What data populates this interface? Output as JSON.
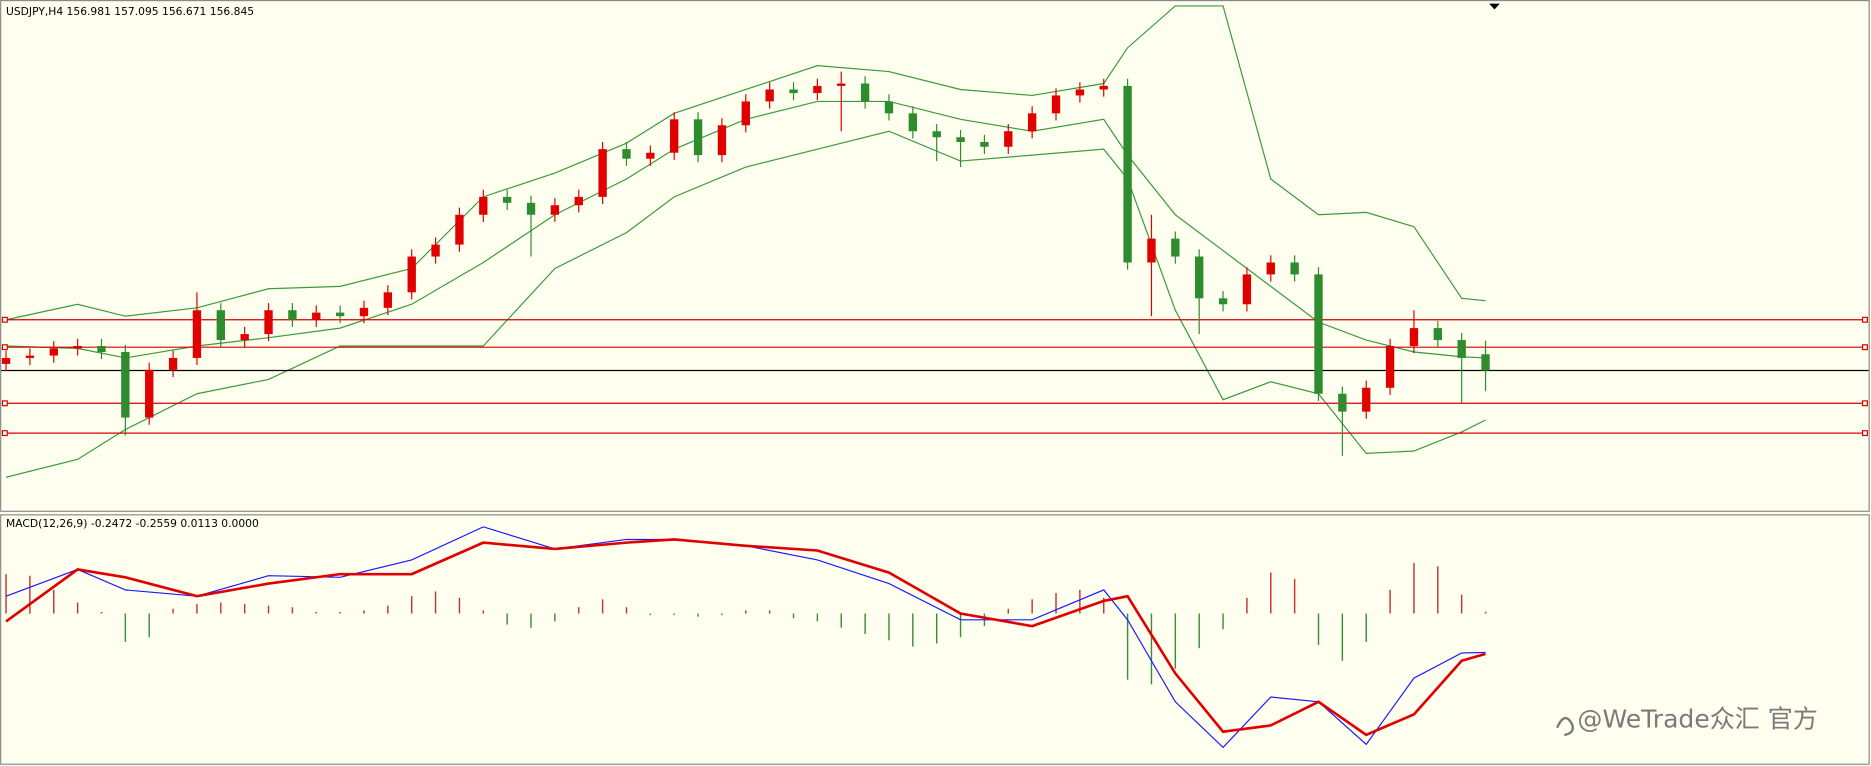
{
  "chart_data": [
    {
      "type": "candlestick",
      "title": "USDJPY,H4  156.981 157.095 156.671 156.845",
      "ylim": [
        155.67,
        159.95
      ],
      "up_color": "#e00000",
      "down_color": "#2e8b2e",
      "open": [
        156.9,
        156.95,
        156.97,
        157.03,
        157.05,
        157.0,
        156.45,
        156.85,
        156.95,
        157.35,
        157.1,
        157.15,
        157.35,
        157.27,
        157.33,
        157.3,
        157.37,
        157.5,
        157.8,
        157.9,
        158.15,
        158.3,
        158.25,
        158.15,
        158.23,
        158.3,
        158.7,
        158.62,
        158.67,
        158.95,
        158.65,
        158.9,
        159.1,
        159.2,
        159.17,
        159.23,
        159.25,
        159.1,
        159.0,
        158.85,
        158.8,
        158.76,
        158.72,
        158.85,
        159.0,
        159.15,
        159.2,
        159.23,
        157.75,
        157.95,
        157.8,
        157.45,
        157.4,
        157.65,
        157.75,
        157.65,
        156.65,
        156.5,
        156.7,
        157.05,
        157.2,
        157.1,
        156.981
      ],
      "high": [
        157.01,
        157.03,
        157.09,
        157.11,
        157.11,
        157.06,
        156.91,
        157.01,
        157.5,
        157.41,
        157.21,
        157.41,
        157.41,
        157.39,
        157.39,
        157.43,
        157.56,
        157.86,
        157.96,
        158.21,
        158.36,
        158.36,
        158.31,
        158.29,
        158.36,
        158.76,
        158.76,
        158.73,
        159.01,
        159.01,
        158.96,
        159.16,
        159.26,
        159.26,
        159.29,
        159.35,
        159.31,
        159.16,
        159.06,
        158.91,
        158.86,
        158.82,
        158.91,
        159.06,
        159.21,
        159.26,
        159.29,
        159.29,
        158.15,
        158.01,
        157.86,
        157.51,
        157.71,
        157.81,
        157.81,
        157.71,
        156.71,
        156.76,
        157.11,
        157.35,
        157.26,
        157.16,
        157.095
      ],
      "low": [
        156.84,
        156.89,
        156.91,
        156.97,
        156.94,
        156.3,
        156.39,
        156.79,
        156.89,
        157.04,
        157.04,
        157.09,
        157.21,
        157.21,
        157.24,
        157.24,
        157.31,
        157.44,
        157.74,
        157.84,
        158.09,
        158.19,
        157.8,
        158.09,
        158.17,
        158.24,
        158.56,
        158.56,
        158.61,
        158.59,
        158.59,
        158.84,
        159.04,
        159.11,
        159.11,
        158.85,
        159.04,
        158.94,
        158.79,
        158.6,
        158.55,
        158.66,
        158.66,
        158.79,
        158.94,
        159.09,
        159.14,
        157.69,
        157.3,
        157.74,
        157.15,
        157.34,
        157.34,
        157.59,
        157.59,
        156.59,
        156.13,
        156.44,
        156.64,
        156.99,
        157.04,
        156.57,
        156.671
      ],
      "close": [
        156.95,
        156.97,
        157.03,
        157.05,
        157.0,
        156.45,
        156.85,
        156.95,
        157.35,
        157.1,
        157.15,
        157.35,
        157.27,
        157.33,
        157.3,
        157.37,
        157.5,
        157.8,
        157.9,
        158.15,
        158.3,
        158.25,
        158.15,
        158.23,
        158.3,
        158.7,
        158.62,
        158.67,
        158.95,
        158.65,
        158.9,
        159.1,
        159.2,
        159.17,
        159.23,
        159.25,
        159.1,
        159.0,
        158.85,
        158.8,
        158.76,
        158.72,
        158.85,
        159.0,
        159.15,
        159.2,
        159.23,
        157.75,
        157.95,
        157.8,
        157.45,
        157.4,
        157.65,
        157.75,
        157.65,
        156.65,
        156.5,
        156.7,
        157.05,
        157.2,
        157.1,
        156.95,
        156.845
      ],
      "bands": {
        "color": "#3c9a3c",
        "x": [
          0,
          3,
          5,
          8,
          11,
          14,
          17,
          20,
          23,
          26,
          28,
          31,
          34,
          37,
          40,
          43,
          46,
          47,
          49,
          51,
          53,
          55,
          57,
          59,
          61,
          62
        ],
        "upper": [
          157.27,
          157.4,
          157.3,
          157.37,
          157.53,
          157.55,
          157.7,
          158.3,
          158.5,
          158.75,
          159.0,
          159.2,
          159.4,
          159.35,
          159.2,
          159.15,
          159.25,
          159.55,
          159.9,
          159.9,
          158.45,
          158.15,
          158.17,
          158.05,
          157.45,
          157.43
        ],
        "middle": [
          157.05,
          157.03,
          156.95,
          157.05,
          157.12,
          157.2,
          157.4,
          157.75,
          158.15,
          158.45,
          158.7,
          158.95,
          159.1,
          159.1,
          158.95,
          158.85,
          158.95,
          158.65,
          158.15,
          157.85,
          157.55,
          157.25,
          157.1,
          157.0,
          156.96,
          156.95
        ],
        "lower": [
          155.95,
          156.1,
          156.35,
          156.65,
          156.77,
          157.05,
          157.05,
          157.05,
          157.7,
          158.0,
          158.3,
          158.55,
          158.7,
          158.85,
          158.6,
          158.65,
          158.7,
          158.45,
          157.35,
          156.6,
          156.75,
          156.65,
          156.15,
          156.17,
          156.33,
          156.43
        ]
      },
      "levels": [
        157.27,
        157.04,
        156.57,
        156.32
      ],
      "level_color": "#d40000",
      "price_line_color": "#000000"
    },
    {
      "type": "line",
      "title": "MACD(12,26,9) -0.2472 -0.2559 0.0113 0.0000",
      "ylim": [
        -0.9525,
        0.6225
      ],
      "x": [
        0,
        3,
        5,
        8,
        11,
        14,
        17,
        20,
        23,
        26,
        28,
        31,
        34,
        37,
        40,
        43,
        46,
        47,
        49,
        51,
        53,
        55,
        57,
        59,
        61,
        62
      ],
      "series": [
        {
          "color": "#1a1aff",
          "values": [
            0.11,
            0.28,
            0.15,
            0.11,
            0.24,
            0.23,
            0.34,
            0.55,
            0.41,
            0.47,
            0.47,
            0.43,
            0.34,
            0.19,
            -0.04,
            -0.04,
            0.15,
            -0.04,
            -0.56,
            -0.85,
            -0.53,
            -0.56,
            -0.83,
            -0.41,
            -0.25,
            -0.2472
          ]
        },
        {
          "color": "#e00000",
          "values": [
            -0.05,
            0.28,
            0.23,
            0.11,
            0.19,
            0.25,
            0.25,
            0.45,
            0.41,
            0.45,
            0.47,
            0.43,
            0.4,
            0.26,
            0.0,
            -0.08,
            0.08,
            0.11,
            -0.38,
            -0.75,
            -0.71,
            -0.56,
            -0.77,
            -0.64,
            -0.3,
            -0.2559
          ]
        }
      ],
      "histogram": {
        "up_color": "#c83232",
        "down_color": "#3c8c3c",
        "values": [
          0.25,
          0.24,
          0.15,
          0.07,
          0.01,
          -0.18,
          -0.15,
          0.03,
          0.06,
          0.07,
          0.06,
          0.05,
          0.04,
          0.01,
          0.01,
          0.02,
          0.05,
          0.11,
          0.14,
          0.1,
          0.02,
          -0.07,
          -0.09,
          -0.05,
          0.04,
          0.09,
          0.04,
          -0.01,
          -0.01,
          -0.02,
          -0.01,
          0.02,
          0.02,
          -0.03,
          -0.05,
          -0.09,
          -0.13,
          -0.17,
          -0.21,
          -0.19,
          -0.15,
          -0.08,
          0.03,
          0.09,
          0.13,
          0.15,
          0.1,
          -0.42,
          -0.45,
          -0.35,
          -0.22,
          -0.1,
          0.1,
          0.26,
          0.22,
          -0.2,
          -0.3,
          -0.18,
          0.15,
          0.32,
          0.3,
          0.12,
          0.0113
        ]
      }
    }
  ],
  "watermark": "@WeTrade众汇 官方"
}
